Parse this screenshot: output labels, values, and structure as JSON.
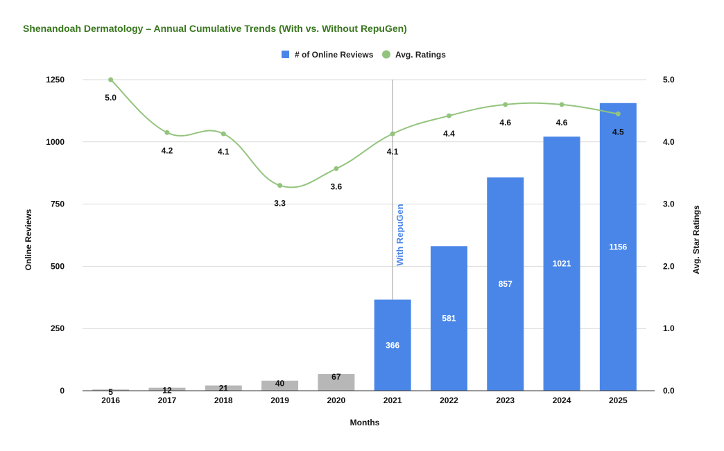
{
  "chart_data": {
    "type": "bar",
    "title": "Shenandoah Dermatology – Annual Cumulative Trends (With vs. Without RepuGen)",
    "categories": [
      "2016",
      "2017",
      "2018",
      "2019",
      "2020",
      "2021",
      "2022",
      "2023",
      "2024",
      "2025"
    ],
    "series": [
      {
        "name": "# of Online Reviews",
        "type": "bar",
        "axis": "left",
        "values": [
          5,
          12,
          21,
          40,
          67,
          366,
          581,
          857,
          1021,
          1156
        ],
        "labels": [
          "5",
          "12",
          "21",
          "40",
          "67",
          "366",
          "581",
          "857",
          "1021",
          "1156"
        ]
      },
      {
        "name": "Avg. Ratings",
        "type": "line",
        "axis": "right",
        "values": [
          5.0,
          4.15,
          4.13,
          3.3,
          3.57,
          4.13,
          4.42,
          4.6,
          4.6,
          4.45
        ],
        "labels": [
          "5.0",
          "4.2",
          "4.1",
          "3.3",
          "3.6",
          "4.1",
          "4.4",
          "4.6",
          "4.6",
          "4.5"
        ]
      }
    ],
    "xlabel": "Months",
    "ylabel": "Online Reviews",
    "y2label": "Avg. Star Ratings",
    "ylim": [
      0,
      1250
    ],
    "y2lim": [
      0,
      5
    ],
    "yticks": [
      "0",
      "250",
      "500",
      "750",
      "1000",
      "1250"
    ],
    "y2ticks": [
      "0.0",
      "1.0",
      "2.0",
      "3.0",
      "4.0",
      "5.0"
    ],
    "grid": true,
    "legend": "top-center",
    "annotation": {
      "text": "With RepuGen",
      "at_category": "2021"
    },
    "without_repugen_years": [
      "2016",
      "2017",
      "2018",
      "2019",
      "2020"
    ]
  },
  "colors": {
    "title": "#38761d",
    "bar_with": "#4a86e8",
    "bar_without": "#b7b7b7",
    "line": "#93c47d",
    "grid": "#d9d9d9",
    "annotation": "#4a86e8"
  }
}
